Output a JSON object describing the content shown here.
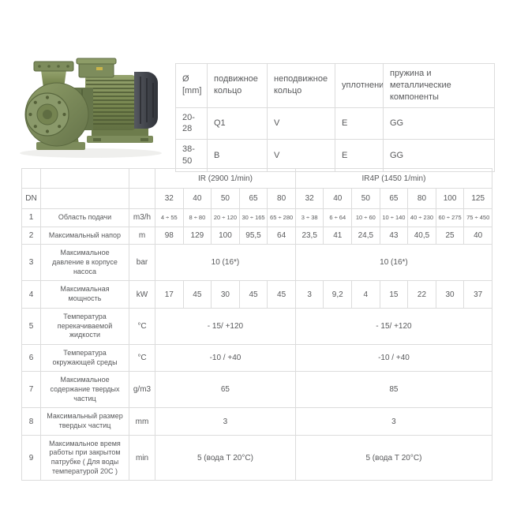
{
  "pump_image": {
    "alt": "green-centrifugal-pump-with-motor"
  },
  "seal_table": {
    "headers": [
      "Ø [mm]",
      "подвижное кольцо",
      "неподвижное кольцо",
      "уплотнение",
      "пружина и металлические компоненты"
    ],
    "rows": [
      [
        "20-28",
        "Q1",
        "V",
        "E",
        "GG"
      ],
      [
        "38-50",
        "B",
        "V",
        "E",
        "GG"
      ]
    ]
  },
  "spec_table": {
    "groups": [
      {
        "label": "IR (2900 1/min)",
        "colspan": 5
      },
      {
        "label": "IR4P (1450 1/min)",
        "colspan": 7
      }
    ],
    "dn_label": "DN",
    "dn_values": [
      "32",
      "40",
      "50",
      "65",
      "80",
      "32",
      "40",
      "50",
      "65",
      "80",
      "100",
      "125"
    ],
    "rows": [
      {
        "num": "1",
        "name": "Область подачи",
        "unit": "m3/h",
        "values": [
          "4 ÷ 55",
          "8 ÷ 80",
          "20 ÷ 120",
          "30 ÷ 165",
          "65 ÷ 280",
          "3 ÷ 38",
          "6 ÷ 64",
          "10 ÷ 60",
          "10 ÷ 140",
          "40 ÷ 230",
          "60 ÷ 275",
          "75 ÷ 450"
        ]
      },
      {
        "num": "2",
        "name": "Максимальный напор",
        "unit": "m",
        "values": [
          "98",
          "129",
          "100",
          "95,5",
          "64",
          "23,5",
          "41",
          "24,5",
          "43",
          "40,5",
          "25",
          "40"
        ]
      },
      {
        "num": "3",
        "name": "Максимальное давление в корпусе насоса",
        "unit": "bar",
        "merged": [
          "10 (16*)",
          "10 (16*)"
        ]
      },
      {
        "num": "4",
        "name": "Максимальная мощность",
        "unit": "kW",
        "values": [
          "17",
          "45",
          "30",
          "45",
          "45",
          "3",
          "9,2",
          "4",
          "15",
          "22",
          "30",
          "37"
        ]
      },
      {
        "num": "5",
        "name": "Температура перекачиваемой жидкости",
        "unit": "°C",
        "merged": [
          "- 15/ +120",
          "- 15/ +120"
        ]
      },
      {
        "num": "6",
        "name": "Температура окружающей среды",
        "unit": "°C",
        "merged": [
          "-10 / +40",
          "-10 / +40"
        ]
      },
      {
        "num": "7",
        "name": "Максимальное содержание твердых частиц",
        "unit": "g/m3",
        "merged": [
          "65",
          "85"
        ]
      },
      {
        "num": "8",
        "name": "Максимальный размер твердых частиц",
        "unit": "mm",
        "merged": [
          "3",
          "3"
        ]
      },
      {
        "num": "9",
        "name": "Максимальное время работы при закрытом патрубке ( Для воды температурой 20С )",
        "unit": "min",
        "merged": [
          "5 (вода Т 20°C)",
          "5 (вода Т 20°C)"
        ]
      }
    ]
  },
  "colors": {
    "border": "#dcdcdc",
    "text": "#58595b",
    "pump_green": "#7d8c5c",
    "pump_green_dark": "#5a683f",
    "motor_dark": "#3a3d43"
  }
}
